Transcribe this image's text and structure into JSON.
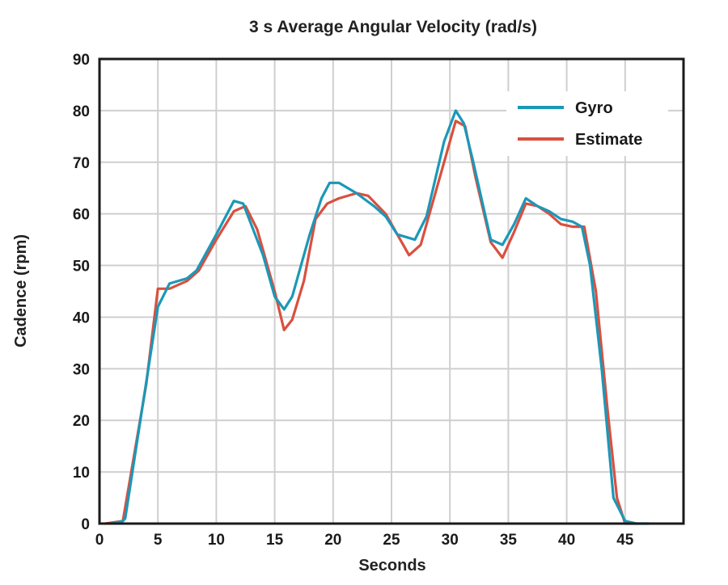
{
  "chart_data": {
    "type": "line",
    "title": "3 s Average Angular Velocity (rad/s)",
    "xlabel": "Seconds",
    "ylabel": "Cadence (rpm)",
    "xlim": [
      0,
      50
    ],
    "ylim": [
      0,
      90
    ],
    "x_ticks": [
      0,
      5,
      10,
      15,
      20,
      25,
      30,
      35,
      40,
      45
    ],
    "y_ticks": [
      0,
      10,
      20,
      30,
      40,
      50,
      60,
      70,
      80,
      90
    ],
    "grid": true,
    "legend_position": "top-right",
    "series": [
      {
        "name": "Gyro",
        "color": "#1b98b8",
        "points": [
          [
            1,
            0
          ],
          [
            2,
            0.5
          ],
          [
            2.2,
            1
          ],
          [
            5,
            42
          ],
          [
            6,
            46.5
          ],
          [
            7.5,
            47.5
          ],
          [
            8.3,
            49
          ],
          [
            10,
            56
          ],
          [
            11.5,
            62.5
          ],
          [
            12.3,
            62
          ],
          [
            14,
            52
          ],
          [
            15,
            44
          ],
          [
            15.8,
            41.5
          ],
          [
            16.5,
            44
          ],
          [
            18,
            56
          ],
          [
            19,
            63
          ],
          [
            19.7,
            66
          ],
          [
            20.5,
            66
          ],
          [
            22,
            64
          ],
          [
            23.5,
            61.5
          ],
          [
            24.5,
            59.5
          ],
          [
            25.5,
            56
          ],
          [
            27,
            55
          ],
          [
            28,
            59.5
          ],
          [
            29.5,
            74
          ],
          [
            30.5,
            80
          ],
          [
            31.2,
            77.5
          ],
          [
            32,
            70
          ],
          [
            33.5,
            55
          ],
          [
            34.5,
            54
          ],
          [
            35.5,
            58
          ],
          [
            36.5,
            63
          ],
          [
            37.5,
            61.5
          ],
          [
            38.5,
            60.5
          ],
          [
            39.5,
            59
          ],
          [
            40.5,
            58.5
          ],
          [
            41.3,
            57.5
          ],
          [
            42,
            50
          ],
          [
            43,
            30
          ],
          [
            44,
            5
          ],
          [
            45,
            0.5
          ],
          [
            46,
            0
          ],
          [
            47,
            0
          ]
        ]
      },
      {
        "name": "Estimate",
        "color": "#d9503f",
        "points": [
          [
            0.5,
            0
          ],
          [
            2,
            0.5
          ],
          [
            4,
            27
          ],
          [
            5,
            45.5
          ],
          [
            6,
            45.5
          ],
          [
            7.5,
            47
          ],
          [
            8.5,
            49
          ],
          [
            10,
            55
          ],
          [
            11.5,
            60.5
          ],
          [
            12.5,
            61.5
          ],
          [
            13.5,
            57
          ],
          [
            15,
            45
          ],
          [
            15.8,
            37.5
          ],
          [
            16.5,
            39.5
          ],
          [
            17.5,
            47
          ],
          [
            18.5,
            59
          ],
          [
            19.5,
            62
          ],
          [
            20.5,
            63
          ],
          [
            22,
            64
          ],
          [
            23,
            63.5
          ],
          [
            24.5,
            60
          ],
          [
            25.5,
            56
          ],
          [
            26.5,
            52
          ],
          [
            27.5,
            54
          ],
          [
            29.5,
            70
          ],
          [
            30.5,
            78
          ],
          [
            31.3,
            77
          ],
          [
            32.2,
            67
          ],
          [
            33.5,
            54.5
          ],
          [
            34.5,
            51.5
          ],
          [
            35.5,
            56.5
          ],
          [
            36.5,
            62
          ],
          [
            37.5,
            61.5
          ],
          [
            38.5,
            60
          ],
          [
            39.5,
            58
          ],
          [
            40.5,
            57.5
          ],
          [
            41.5,
            57.5
          ],
          [
            42.5,
            45
          ],
          [
            43.5,
            22
          ],
          [
            44.3,
            5
          ],
          [
            45,
            0
          ],
          [
            46,
            0
          ]
        ]
      }
    ]
  }
}
